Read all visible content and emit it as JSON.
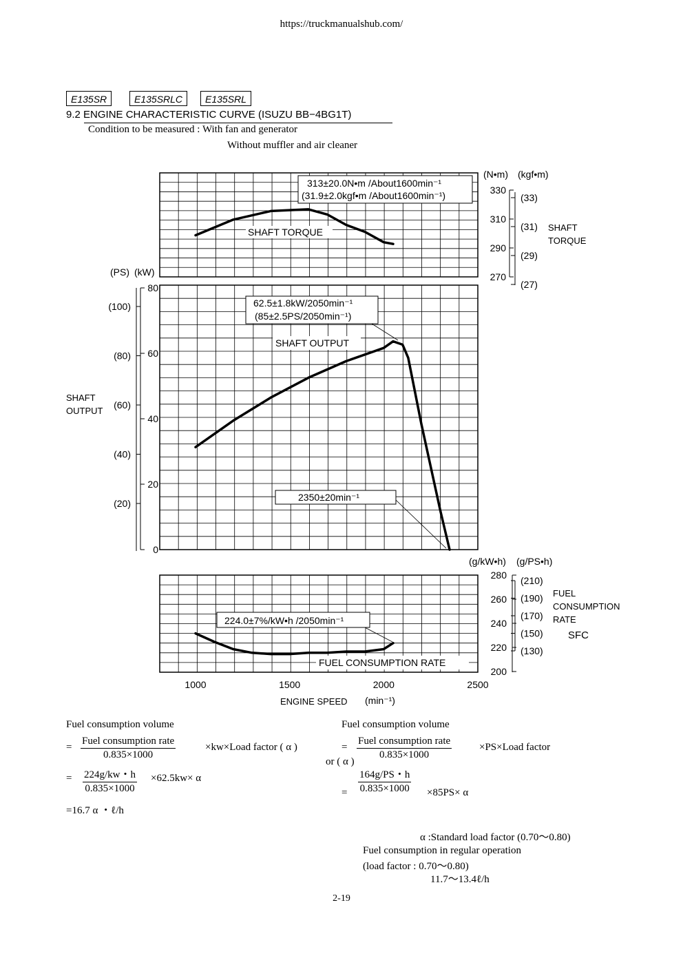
{
  "url": "https://truckmanualshub.com/",
  "models": [
    "E135SR",
    "E135SRLC",
    "E135SRL"
  ],
  "section_title": "9.2  ENGINE CHARACTERISTIC CURVE    (ISUZU   BB−4BG1T)",
  "condition_line1": "Condition to be measured : With fan and generator",
  "condition_line2": "Without muffler and air cleaner",
  "torque_chart": {
    "unit_nm": "(N•m)",
    "unit_kgfm": "(kgf•m)",
    "side_label_1": "SHAFT",
    "side_label_2": "TORQUE",
    "nm_ticks": [
      "330",
      "310",
      "290",
      "270"
    ],
    "kgfm_ticks": [
      "(33)",
      "(31)",
      "(29)",
      "(27)"
    ],
    "annotation_1": "313±20.0N•m /About1600min⁻¹",
    "annotation_2": "(31.9±2.0kgf•m /About1600min⁻¹)",
    "curve_label": "SHAFT TORQUE"
  },
  "output_chart": {
    "unit_ps": "(PS)",
    "unit_kw": "(kW)",
    "side_label_1": "SHAFT",
    "side_label_2": "OUTPUT",
    "kw_ticks": [
      "80",
      "60",
      "40",
      "20",
      "0"
    ],
    "ps_ticks": [
      "(100)",
      "(80)",
      "(60)",
      "(40)",
      "(20)"
    ],
    "annotation_1": "62.5±1.8kW/2050min⁻¹",
    "annotation_2": "(85±2.5PS/2050min⁻¹)",
    "curve_label": "SHAFT OUTPUT",
    "speed_annotation": "2350±20min⁻¹"
  },
  "fuel_chart": {
    "unit_kwh": "(g/kW•h)",
    "unit_psh": "(g/PS•h)",
    "side_label_1": "FUEL",
    "side_label_2": "CONSUMPTION",
    "side_label_3": "RATE",
    "side_label_4": "SFC",
    "kwh_ticks": [
      "280",
      "260",
      "240",
      "220",
      "200"
    ],
    "psh_ticks": [
      "(210)",
      "(190)",
      "(170)",
      "(150)",
      "(130)"
    ],
    "annotation": "224.0±7%/kW•h /2050min⁻¹",
    "curve_label": "FUEL CONSUMPTION RATE"
  },
  "x_axis": {
    "ticks": [
      "1000",
      "1500",
      "2000",
      "2500"
    ],
    "label": "ENGINE SPEED",
    "unit": "(min⁻¹)"
  },
  "chart_data": [
    {
      "type": "line",
      "title": "",
      "xlabel": "ENGINE SPEED (min⁻¹)",
      "ylabel": "SHAFT TORQUE (N•m)",
      "xlim": [
        1000,
        2500
      ],
      "ylim": [
        270,
        330
      ],
      "series": [
        {
          "name": "SHAFT TORQUE",
          "x": [
            1000,
            1200,
            1400,
            1600,
            1700,
            1800,
            1900,
            2000,
            2050
          ],
          "y": [
            294,
            303,
            308,
            309,
            306,
            300,
            296,
            290,
            289
          ]
        }
      ]
    },
    {
      "type": "line",
      "title": "",
      "xlabel": "ENGINE SPEED (min⁻¹)",
      "ylabel": "SHAFT OUTPUT (kW)",
      "xlim": [
        1000,
        2500
      ],
      "ylim": [
        0,
        80
      ],
      "series": [
        {
          "name": "SHAFT OUTPUT",
          "x": [
            1000,
            1200,
            1400,
            1600,
            1800,
            2000,
            2050,
            2100,
            2130,
            2200,
            2300,
            2350
          ],
          "y": [
            31,
            39,
            46,
            52,
            57,
            61,
            63,
            62,
            58,
            38,
            12,
            0
          ]
        }
      ]
    },
    {
      "type": "line",
      "title": "",
      "xlabel": "ENGINE SPEED (min⁻¹)",
      "ylabel": "FUEL CONSUMPTION RATE (g/kW•h)",
      "xlim": [
        1000,
        2500
      ],
      "ylim": [
        200,
        280
      ],
      "series": [
        {
          "name": "FUEL CONSUMPTION RATE",
          "x": [
            1000,
            1100,
            1200,
            1300,
            1400,
            1500,
            1600,
            1700,
            1800,
            1900,
            2000,
            2050
          ],
          "y": [
            232,
            225,
            219,
            216,
            215,
            215,
            216,
            216,
            217,
            217,
            219,
            224
          ]
        }
      ]
    }
  ],
  "formulas": {
    "left_heading": "Fuel consumption volume",
    "right_heading": "Fuel consumption volume",
    "eq": "=",
    "frac_num": "Fuel consumption rate",
    "frac_den": "0.835×1000",
    "left_tail": "×kw×Load factor ( α )",
    "right_tail": "×PS×Load factor",
    "or_alpha": "or  ( α )",
    "left_num2": "224g/kw・h",
    "left_tail2": "×62.5kw× α",
    "right_num2": "164g/PS・h",
    "right_tail2": "×85PS× α",
    "result": "=16.7 α ・ℓ/h"
  },
  "notes": {
    "line1": "α :Standard load factor (0.70〜0.80)",
    "line2": "Fuel consumption in regular operation",
    "line3": "(load factor : 0.70〜0.80)",
    "line4": "11.7〜13.4ℓ/h"
  },
  "page_number": "2-19"
}
